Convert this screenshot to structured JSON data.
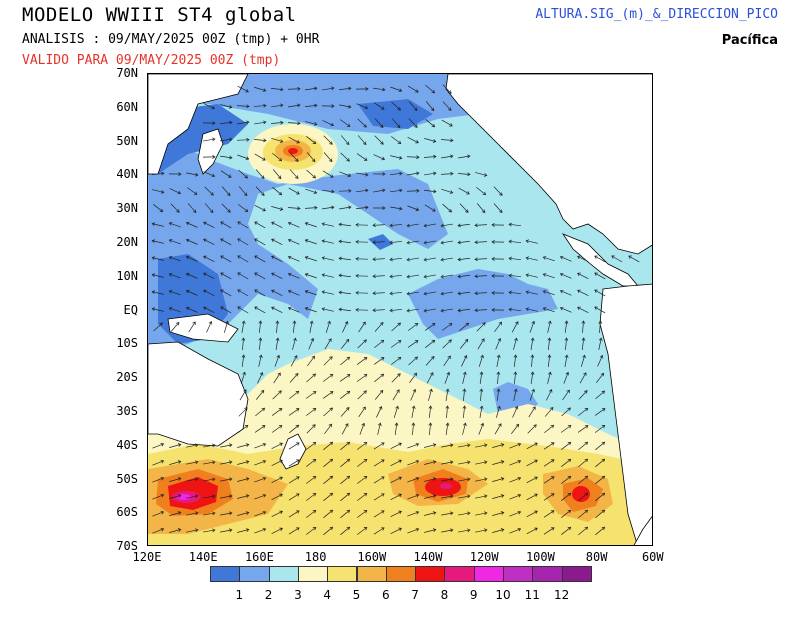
{
  "header": {
    "title": "MODELO WWIII ST4 global",
    "analysis": "ANALISIS : 09/MAY/2025 00Z  (tmp) + 0HR",
    "valid": "VALIDO PARA  09/MAY/2025 00Z  (tmp)",
    "variable": "ALTURA.SIG_(m)_&_DIRECCION_PICO",
    "region": "Pacífica"
  },
  "axes": {
    "lat_labels": [
      "70N",
      "60N",
      "50N",
      "40N",
      "30N",
      "20N",
      "10N",
      "EQ",
      "10S",
      "20S",
      "30S",
      "40S",
      "50S",
      "60S",
      "70S"
    ],
    "lon_labels": [
      "120E",
      "140E",
      "160E",
      "180",
      "160W",
      "140W",
      "120W",
      "100W",
      "80W",
      "60W"
    ]
  },
  "colorbar": {
    "labels": [
      "1",
      "2",
      "3",
      "4",
      "5",
      "6",
      "7",
      "8",
      "9",
      "10",
      "11",
      "12"
    ],
    "colors": [
      "#3f78d8",
      "#76a7ec",
      "#a9e6ee",
      "#fbf6c4",
      "#f6e36f",
      "#f4b548",
      "#f07f1e",
      "#ee1414",
      "#e6197c",
      "#ee28e4",
      "#c02fc4",
      "#a623b0",
      "#8a1a8e"
    ]
  },
  "map": {
    "land_color": "#ffffff",
    "coast_color": "#000000",
    "arrow_color": "#222222"
  }
}
